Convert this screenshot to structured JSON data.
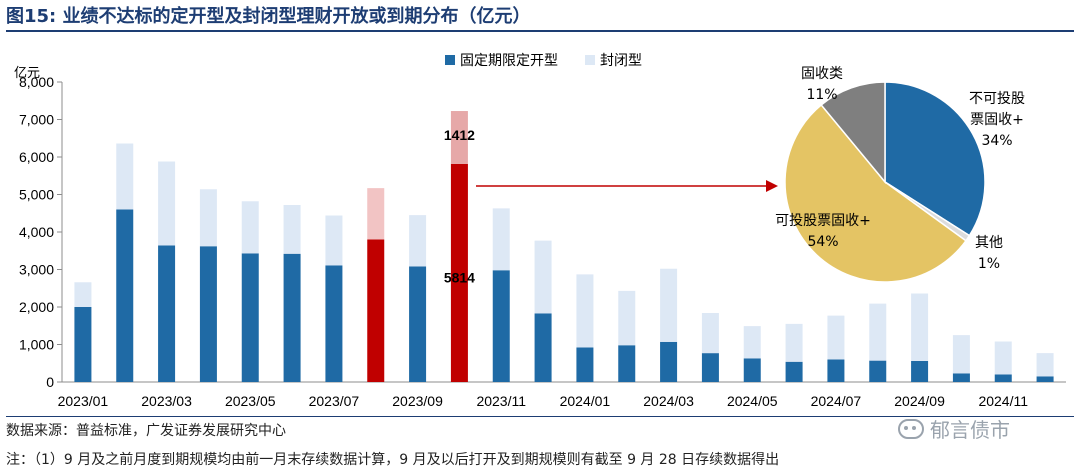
{
  "title": {
    "prefix": "图15:",
    "text": "业绩不达标的定开型及封闭型理财开放或到期分布（亿元）"
  },
  "colors": {
    "fixed": "#1f6aa5",
    "closed": "#dde8f5",
    "highlight_fixed": "#c00000",
    "highlight_closed": "#f2c4c4",
    "highlight_closed_2": "#e6a8a8",
    "arrow": "#c00000",
    "pie_blue": "#1f6aa5",
    "pie_white": "#dcdcdc",
    "pie_yellow": "#e4c464",
    "pie_gray": "#7f7f7f"
  },
  "chart_data": [
    {
      "type": "bar",
      "stacked": true,
      "unit_label": "亿元",
      "ylim": [
        0,
        8000
      ],
      "yticks": [
        "0",
        "1,000",
        "2,000",
        "3,000",
        "4,000",
        "5,000",
        "6,000",
        "7,000",
        "8,000"
      ],
      "ytick_values": [
        0,
        1000,
        2000,
        3000,
        4000,
        5000,
        6000,
        7000,
        8000
      ],
      "categories": [
        "2023/01",
        "2023/02",
        "2023/03",
        "2023/04",
        "2023/05",
        "2023/06",
        "2023/07",
        "2023/08",
        "2023/09",
        "2023/10",
        "2023/11",
        "2023/12",
        "2024/01",
        "2024/02",
        "2024/03",
        "2024/04",
        "2024/05",
        "2024/06",
        "2024/07",
        "2024/08",
        "2024/09",
        "2024/10",
        "2024/11",
        "2024/12"
      ],
      "xtick_labels": [
        "2023/01",
        "",
        "2023/03",
        "",
        "2023/05",
        "",
        "2023/07",
        "",
        "2023/09",
        "",
        "2023/11",
        "",
        "2024/01",
        "",
        "2024/03",
        "",
        "2024/05",
        "",
        "2024/07",
        "",
        "2024/09",
        "",
        "2024/11",
        ""
      ],
      "series": [
        {
          "name": "固定期限定开型",
          "values": [
            2000,
            4600,
            3640,
            3620,
            3430,
            3420,
            3110,
            3800,
            3080,
            5814,
            2980,
            1830,
            920,
            980,
            1070,
            770,
            630,
            540,
            600,
            570,
            560,
            230,
            200,
            150
          ]
        },
        {
          "name": "封闭型",
          "values": [
            660,
            1760,
            2240,
            1520,
            1390,
            1300,
            1330,
            1370,
            1370,
            1412,
            1650,
            1940,
            1950,
            1450,
            1950,
            1070,
            860,
            1010,
            1170,
            1520,
            1800,
            1020,
            880,
            620
          ]
        }
      ],
      "highlight_indices": [
        7,
        9
      ],
      "data_labels": [
        {
          "index": 9,
          "series": "固定期限定开型",
          "text": "5814"
        },
        {
          "index": 9,
          "series": "封闭型",
          "text": "1412"
        }
      ],
      "legend_position": "top"
    },
    {
      "type": "pie",
      "slices": [
        {
          "label_lines": [
            "不可投股",
            "票固收+"
          ],
          "pct_label": "34%",
          "value": 34,
          "color_key": "pie_blue"
        },
        {
          "label_lines": [
            "其他"
          ],
          "pct_label": "1%",
          "value": 1,
          "color_key": "pie_white"
        },
        {
          "label_lines": [
            "可投股票固收+"
          ],
          "pct_label": "54%",
          "value": 54,
          "color_key": "pie_yellow"
        },
        {
          "label_lines": [
            "固收类"
          ],
          "pct_label": "11%",
          "value": 11,
          "color_key": "pie_gray"
        }
      ]
    }
  ],
  "source": "数据来源：普益标准，广发证券发展研究中心",
  "note": "注：（1）9 月及之前月度到期规模均由前一月末存续数据计算，9 月及以后打开及到期规模则有截至 9 月 28 日存续数据得出",
  "watermark": "郁言债市"
}
